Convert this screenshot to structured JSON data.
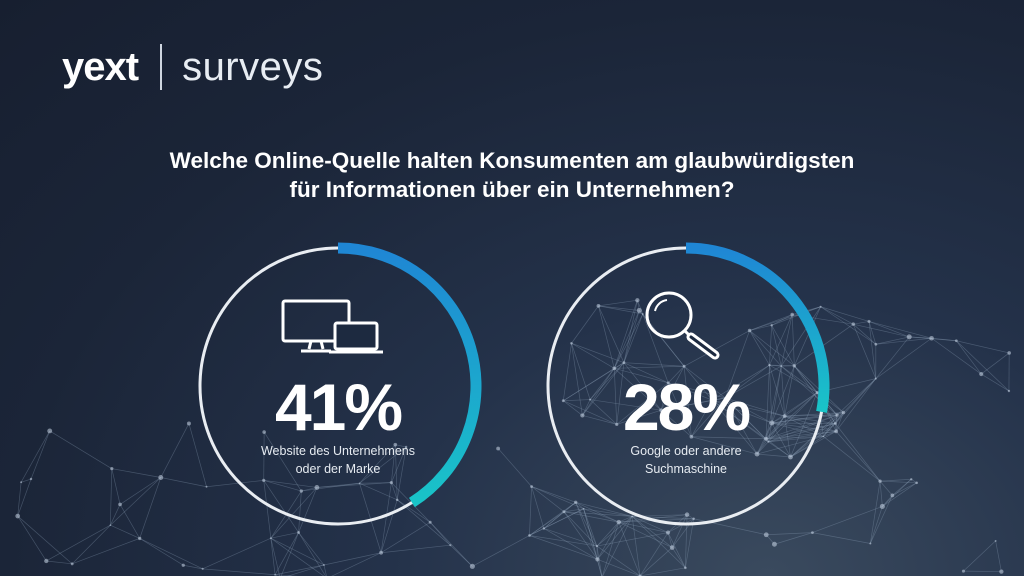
{
  "logo": {
    "brand": "yext",
    "product": "surveys"
  },
  "colors": {
    "ring_track": "#e9edf2",
    "arc_start": "#1f86d4",
    "arc_end": "#19c4c8"
  },
  "chart_data": {
    "type": "donut",
    "title_lines": [
      "Welche Online-Quelle halten Konsumenten am glaubwürdigsten",
      "für Informationen über ein Unternehmen?"
    ],
    "unit": "%",
    "items": [
      {
        "value": 41,
        "value_label": "41%",
        "label_lines": [
          "Website des Unternehmens",
          "oder der Marke"
        ],
        "icon": "devices-icon"
      },
      {
        "value": 28,
        "value_label": "28%",
        "label_lines": [
          "Google oder andere",
          "Suchmaschine"
        ],
        "icon": "magnifier-icon"
      }
    ]
  }
}
